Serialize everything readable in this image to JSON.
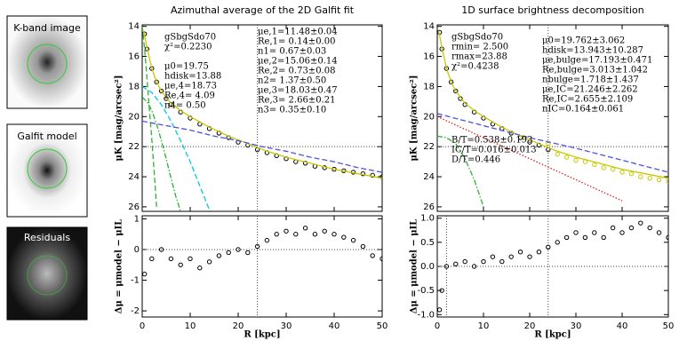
{
  "images": [
    {
      "label": "K-band image"
    },
    {
      "label": "Galfit model"
    },
    {
      "label": "Residuals"
    }
  ],
  "chart_data": [
    {
      "type": "scatter",
      "title": "Azimuthal average of the 2D Galfit fit",
      "ylabel": "μK  [mag/arcsec²]",
      "xlim": [
        0,
        50
      ],
      "ylim": [
        26.3,
        13.9
      ],
      "xticks": [
        0,
        10,
        20,
        30,
        40,
        50
      ],
      "show_xtick_labels": false,
      "yticks": [
        14,
        16,
        18,
        20,
        22,
        24,
        26
      ],
      "vlines": [
        24
      ],
      "hlines": [
        22
      ],
      "annotations": [
        {
          "lines": [
            "gSbgSdo70",
            "χ²=0.2230",
            "",
            "μ0=19.75",
            "hdisk=13.88",
            "μe,4=18.73",
            "Re,4= 4.09",
            "n4= 0.50"
          ]
        },
        {
          "lines": [
            "μe,1=11.48±0.04",
            "Re,1= 0.14±0.00",
            "n1= 0.67±0.03",
            "μe,2=15.06±0.14",
            "Re,2= 0.73±0.08",
            "n2= 1.37±0.50",
            "μe,3=18.03±0.47",
            "Re,3= 2.66±0.21",
            "n3= 0.35±0.10"
          ]
        }
      ],
      "series": [
        {
          "style": "points",
          "color": "#000000",
          "x": [
            0.5,
            1,
            2,
            3,
            4,
            5,
            6,
            8,
            10,
            12,
            14,
            16,
            18,
            20,
            22,
            24,
            26,
            28,
            30,
            32,
            34,
            36,
            38,
            40,
            42,
            44,
            46,
            48,
            50
          ],
          "values": [
            14.5,
            15.5,
            16.8,
            17.7,
            18.3,
            18.8,
            19.2,
            19.7,
            20.1,
            20.5,
            20.8,
            21.1,
            21.4,
            21.7,
            21.9,
            22.2,
            22.4,
            22.6,
            22.8,
            23.0,
            23.1,
            23.3,
            23.4,
            23.5,
            23.6,
            23.7,
            23.8,
            23.9,
            24.0
          ]
        },
        {
          "style": "solid",
          "color": "#c8c800",
          "x": [
            0.3,
            1,
            2,
            3,
            4,
            6,
            8,
            10,
            14,
            18,
            22,
            26,
            30,
            35,
            40,
            45,
            50
          ],
          "values": [
            14.3,
            15.4,
            16.8,
            17.7,
            18.3,
            19.1,
            19.6,
            20.0,
            20.7,
            21.3,
            21.8,
            22.3,
            22.7,
            23.1,
            23.5,
            23.8,
            24.1
          ]
        },
        {
          "style": "dashed",
          "color": "#00c8e0",
          "x": [
            0,
            2,
            4,
            6,
            8,
            10,
            12,
            14
          ],
          "values": [
            18.0,
            18.4,
            19.2,
            20.3,
            21.6,
            23.0,
            24.6,
            26.2
          ]
        },
        {
          "style": "dashdot",
          "color": "#30b030",
          "x": [
            0,
            1,
            2,
            3,
            4,
            5,
            6,
            7,
            8
          ],
          "values": [
            18.7,
            19.0,
            19.6,
            20.5,
            21.6,
            22.8,
            24.1,
            25.3,
            26.3
          ]
        },
        {
          "style": "dashed",
          "color": "#30b030",
          "x": [
            0,
            0.5,
            1,
            1.5,
            2,
            2.5,
            3
          ],
          "values": [
            14,
            15.5,
            17.5,
            19.5,
            21.5,
            23.7,
            26
          ]
        },
        {
          "style": "dashed",
          "color": "#5050e0",
          "x": [
            0,
            5,
            10,
            15,
            20,
            25,
            30,
            35,
            40,
            45,
            50
          ],
          "values": [
            20.3,
            20.6,
            20.9,
            21.3,
            21.6,
            22.0,
            22.3,
            22.7,
            23.0,
            23.4,
            23.7
          ]
        }
      ]
    },
    {
      "type": "scatter",
      "xlabel": "R  [kpc]",
      "ylabel": "Δμ = μmodel − μIL",
      "xlim": [
        0,
        50
      ],
      "ylim": [
        -2.2,
        1.1
      ],
      "xticks": [
        0,
        10,
        20,
        30,
        40,
        50
      ],
      "show_xtick_labels": true,
      "yticks": [
        -2,
        -1,
        0,
        1
      ],
      "vlines": [
        24
      ],
      "hlines": [
        0
      ],
      "series": [
        {
          "style": "points",
          "color": "#000000",
          "x": [
            0.5,
            2,
            4,
            6,
            8,
            10,
            12,
            14,
            16,
            18,
            20,
            22,
            24,
            26,
            28,
            30,
            32,
            34,
            36,
            38,
            40,
            42,
            44,
            46,
            48,
            50
          ],
          "values": [
            -0.8,
            -0.3,
            0.0,
            -0.3,
            -0.5,
            -0.3,
            -0.6,
            -0.4,
            -0.2,
            -0.1,
            0.0,
            -0.1,
            0.1,
            0.3,
            0.5,
            0.6,
            0.5,
            0.7,
            0.5,
            0.6,
            0.5,
            0.4,
            0.3,
            0.1,
            -0.2,
            -0.3
          ]
        }
      ]
    },
    {
      "type": "scatter",
      "title": "1D surface brightness decomposition",
      "ylabel": "μK  [mag/arcsec²]",
      "xlim": [
        0,
        50
      ],
      "ylim": [
        26.3,
        13.9
      ],
      "xticks": [
        0,
        10,
        20,
        30,
        40,
        50
      ],
      "show_xtick_labels": false,
      "yticks": [
        14,
        16,
        18,
        20,
        22,
        24,
        26
      ],
      "vlines": [
        24
      ],
      "hlines": [
        22
      ],
      "annotations": [
        {
          "lines": [
            "gSbgSdo70",
            "rmin= 2.500",
            "rmax=23.88",
            "χ²=0.4238"
          ]
        },
        {
          "lines": [
            "μ0=19.762±3.062",
            "hdisk=13.943±10.287",
            "μe,bulge=17.193±0.471",
            "Re,bulge=3.013±1.042",
            "nbulge=1.718±1.437",
            "μe,IC=21.246±2.262",
            "Re,IC=2.655±2.109",
            "nIC=0.164±0.061"
          ]
        },
        {
          "lines": [
            "B/T=0.538±0.193",
            "IC/T=0.016±0.013",
            "D/T=0.446"
          ]
        }
      ],
      "series": [
        {
          "style": "points",
          "color": "#000000",
          "x": [
            0.5,
            1,
            2,
            3,
            4,
            5,
            6,
            8,
            10,
            12,
            14,
            16,
            18,
            20,
            22,
            24
          ],
          "values": [
            14.4,
            15.5,
            16.8,
            17.7,
            18.3,
            18.8,
            19.2,
            19.7,
            20.1,
            20.5,
            20.8,
            21.1,
            21.4,
            21.7,
            21.9,
            22.2
          ]
        },
        {
          "style": "points",
          "color": "#c8c800",
          "x": [
            24,
            26,
            28,
            30,
            32,
            34,
            36,
            38,
            40,
            42,
            44,
            46,
            48,
            50
          ],
          "values": [
            21.8,
            22.5,
            22.7,
            22.9,
            23.0,
            23.2,
            23.4,
            23.5,
            23.7,
            23.8,
            24.0,
            24.1,
            24.2,
            24.3
          ]
        },
        {
          "style": "solid",
          "color": "#c8c800",
          "x": [
            0.3,
            1,
            2,
            3,
            4,
            6,
            8,
            10,
            14,
            18,
            22,
            26,
            30,
            35,
            40,
            45,
            50
          ],
          "values": [
            14.3,
            15.4,
            16.8,
            17.7,
            18.3,
            19.1,
            19.6,
            20.0,
            20.7,
            21.3,
            21.8,
            22.3,
            22.7,
            23.1,
            23.5,
            23.8,
            24.1
          ]
        },
        {
          "style": "dashed",
          "color": "#5050e0",
          "x": [
            0,
            10,
            20,
            30,
            40,
            50
          ],
          "values": [
            19.8,
            20.6,
            21.4,
            22.1,
            22.9,
            23.7
          ]
        },
        {
          "style": "dotted",
          "color": "#e02020",
          "x": [
            0,
            10,
            20,
            30,
            40
          ],
          "values": [
            20.0,
            21.4,
            22.8,
            24.2,
            25.6
          ]
        },
        {
          "style": "dashdot",
          "color": "#30b030",
          "x": [
            0,
            2,
            4,
            6,
            8,
            10
          ],
          "values": [
            21.3,
            21.4,
            21.8,
            22.8,
            24.2,
            26
          ]
        }
      ]
    },
    {
      "type": "scatter",
      "xlabel": "R  [kpc]",
      "ylabel": "Δμ = μmodel − μIL",
      "xlim": [
        0,
        50
      ],
      "ylim": [
        -1.05,
        1.05
      ],
      "xticks": [
        0,
        10,
        20,
        30,
        40,
        50
      ],
      "show_xtick_labels": true,
      "yticks": [
        {
          "value": -1,
          "label": "-1.0"
        },
        {
          "value": -0.5,
          "label": "-0.5"
        },
        {
          "value": 0,
          "label": "0.0"
        },
        {
          "value": 0.5,
          "label": "0.5"
        },
        {
          "value": 1,
          "label": "1.0"
        }
      ],
      "vlines": [
        2,
        24
      ],
      "hlines": [
        0
      ],
      "series": [
        {
          "style": "points",
          "color": "#000000",
          "x": [
            0.5,
            1,
            2,
            4,
            6,
            8,
            10,
            12,
            14,
            16,
            18,
            20,
            22,
            24,
            26,
            28,
            30,
            32,
            34,
            36,
            38,
            40,
            42,
            44,
            46,
            48,
            50
          ],
          "values": [
            -0.9,
            -0.5,
            0.0,
            0.05,
            0.1,
            0.0,
            0.1,
            0.2,
            0.1,
            0.2,
            0.3,
            0.2,
            0.3,
            0.4,
            0.5,
            0.6,
            0.7,
            0.6,
            0.7,
            0.6,
            0.8,
            0.7,
            0.8,
            0.9,
            0.8,
            0.7,
            0.6
          ]
        }
      ]
    }
  ]
}
